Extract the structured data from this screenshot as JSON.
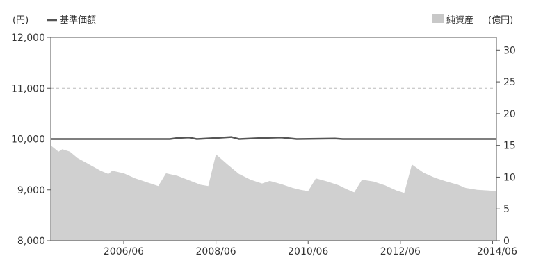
{
  "chart_data": {
    "type": "line",
    "left_unit": "(円)",
    "right_unit": "(億円)",
    "legend_nav": "基準価額",
    "legend_assets": "純資産",
    "legend_placement": "top",
    "nav_color": "#555555",
    "assets_color": "#d0d0d0",
    "x_ticks": [
      "2006/06",
      "2008/06",
      "2010/06",
      "2012/06",
      "2014/06"
    ],
    "y_left": {
      "min": 8000,
      "max": 12000,
      "ticks": [
        "8,000",
        "9,000",
        "10,000",
        "11,000",
        "12,000"
      ],
      "tick_values": [
        8000,
        9000,
        10000,
        11000,
        12000
      ]
    },
    "y_right": {
      "min": 0,
      "max": 32,
      "ticks": [
        "0",
        "5",
        "10",
        "15",
        "20",
        "25",
        "30"
      ],
      "tick_values": [
        0,
        5,
        10,
        15,
        20,
        25,
        30
      ]
    },
    "x_range": [
      "2004/11",
      "2014/07"
    ],
    "grid": "dashed line at 11,000",
    "series": [
      {
        "name": "基準価額",
        "axis": "left",
        "type": "line",
        "points": [
          [
            "2004/11",
            10000
          ],
          [
            "2007/06",
            10000
          ],
          [
            "2007/08",
            10020
          ],
          [
            "2007/11",
            10030
          ],
          [
            "2008/01",
            10000
          ],
          [
            "2008/06",
            10020
          ],
          [
            "2008/10",
            10040
          ],
          [
            "2008/12",
            10000
          ],
          [
            "2009/06",
            10020
          ],
          [
            "2009/11",
            10030
          ],
          [
            "2010/03",
            10000
          ],
          [
            "2011/01",
            10010
          ],
          [
            "2011/03",
            10000
          ],
          [
            "2014/07",
            10000
          ]
        ]
      },
      {
        "name": "純資産",
        "axis": "right",
        "type": "area",
        "points": [
          [
            "2004/11",
            15.0
          ],
          [
            "2005/01",
            14.0
          ],
          [
            "2005/02",
            14.4
          ],
          [
            "2005/04",
            14.0
          ],
          [
            "2005/06",
            13.0
          ],
          [
            "2005/09",
            12.0
          ],
          [
            "2005/12",
            11.0
          ],
          [
            "2006/02",
            10.5
          ],
          [
            "2006/03",
            11.0
          ],
          [
            "2006/06",
            10.6
          ],
          [
            "2006/09",
            9.8
          ],
          [
            "2006/12",
            9.2
          ],
          [
            "2007/03",
            8.6
          ],
          [
            "2007/05",
            10.6
          ],
          [
            "2007/08",
            10.2
          ],
          [
            "2007/11",
            9.5
          ],
          [
            "2008/02",
            8.8
          ],
          [
            "2008/04",
            8.6
          ],
          [
            "2008/06",
            13.6
          ],
          [
            "2008/09",
            12.0
          ],
          [
            "2008/12",
            10.5
          ],
          [
            "2009/03",
            9.6
          ],
          [
            "2009/06",
            9.0
          ],
          [
            "2009/08",
            9.4
          ],
          [
            "2009/11",
            8.9
          ],
          [
            "2010/02",
            8.3
          ],
          [
            "2010/04",
            8.0
          ],
          [
            "2010/06",
            7.8
          ],
          [
            "2010/08",
            9.8
          ],
          [
            "2010/11",
            9.3
          ],
          [
            "2011/02",
            8.7
          ],
          [
            "2011/04",
            8.1
          ],
          [
            "2011/06",
            7.6
          ],
          [
            "2011/08",
            9.6
          ],
          [
            "2011/11",
            9.3
          ],
          [
            "2012/02",
            8.7
          ],
          [
            "2012/05",
            7.9
          ],
          [
            "2012/07",
            7.5
          ],
          [
            "2012/09",
            12.0
          ],
          [
            "2012/12",
            10.7
          ],
          [
            "2013/03",
            9.9
          ],
          [
            "2013/06",
            9.3
          ],
          [
            "2013/09",
            8.8
          ],
          [
            "2013/11",
            8.3
          ],
          [
            "2014/02",
            8.0
          ],
          [
            "2014/05",
            7.9
          ],
          [
            "2014/07",
            7.8
          ]
        ]
      }
    ]
  }
}
